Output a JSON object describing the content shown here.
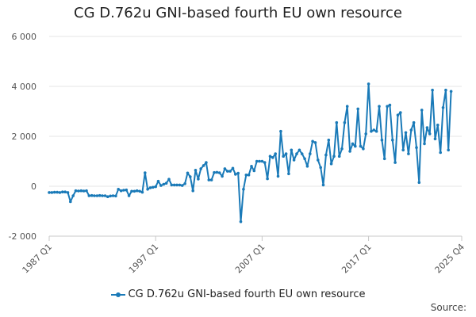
{
  "chart_data": {
    "type": "line",
    "title": "CG D.762u GNI-based fourth EU own resource",
    "xlabel": "",
    "ylabel": "",
    "x_start": "1987 Q1",
    "x_end": "2025 Q4",
    "x_ticks": [
      "1987 Q1",
      "1997 Q1",
      "2007 Q1",
      "2017 Q1",
      "2025 Q4"
    ],
    "ylim": [
      -2000,
      6000
    ],
    "y_ticks": [
      -2000,
      0,
      2000,
      4000,
      6000
    ],
    "y_tick_labels": [
      "-2 000",
      "0",
      "2 000",
      "4 000",
      "6 000"
    ],
    "grid": true,
    "legend_position": "bottom",
    "series": [
      {
        "name": "CG D.762u GNI-based fourth EU own resource",
        "color": "#1a7ab8",
        "values": [
          -250,
          -250,
          -240,
          -240,
          -250,
          -230,
          -230,
          -250,
          -620,
          -380,
          -180,
          -190,
          -180,
          -190,
          -180,
          -380,
          -370,
          -380,
          -380,
          -370,
          -380,
          -380,
          -420,
          -390,
          -380,
          -390,
          -120,
          -180,
          -160,
          -150,
          -380,
          -200,
          -200,
          -180,
          -200,
          -240,
          540,
          -120,
          -60,
          -40,
          -20,
          200,
          30,
          80,
          120,
          280,
          50,
          50,
          50,
          50,
          30,
          100,
          530,
          380,
          -180,
          640,
          290,
          700,
          830,
          950,
          250,
          250,
          550,
          560,
          540,
          400,
          700,
          600,
          600,
          720,
          480,
          520,
          -1420,
          -120,
          450,
          450,
          800,
          620,
          1000,
          1000,
          1000,
          950,
          300,
          1200,
          1150,
          1300,
          400,
          2200,
          1200,
          1300,
          500,
          1450,
          1050,
          1300,
          1450,
          1300,
          1100,
          800,
          1300,
          1800,
          1750,
          1050,
          750,
          50,
          1250,
          1850,
          900,
          1200,
          2550,
          1200,
          1500,
          2550,
          3200,
          1400,
          1700,
          1600,
          3100,
          1600,
          1500,
          2100,
          4100,
          2200,
          2250,
          2200,
          3200,
          1850,
          1100,
          3200,
          3250,
          1850,
          950,
          2850,
          2950,
          1450,
          2150,
          1300,
          2250,
          2550,
          1550,
          150,
          3050,
          1700,
          2350,
          2100,
          3850,
          1900,
          2450,
          1350,
          3150,
          3850,
          1450,
          3800
        ]
      }
    ]
  },
  "legend": {
    "label": "CG D.762u GNI-based fourth EU own resource"
  },
  "source": {
    "label": "Source:"
  }
}
